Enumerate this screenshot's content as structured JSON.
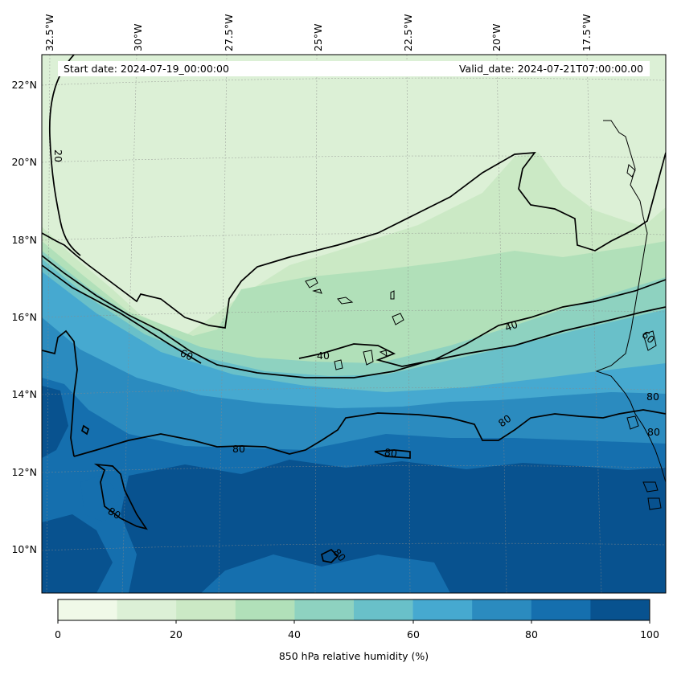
{
  "map": {
    "start_date": "Start date: 2024-07-19_00:00:00",
    "valid_date": "Valid_date: 2024-07-21T07:00:00.00",
    "lon_labels": [
      "32.5°W",
      "30°W",
      "27.5°W",
      "25°W",
      "22.5°W",
      "20°W",
      "17.5°W"
    ],
    "lat_labels": [
      "22°N",
      "20°N",
      "18°N",
      "16°N",
      "14°N",
      "12°N",
      "10°N"
    ],
    "contour_labels": [
      "20",
      "40",
      "40",
      "60",
      "60",
      "80",
      "80",
      "80",
      "80",
      "80",
      "80",
      "80"
    ],
    "field": "850 hPa relative humidity"
  },
  "colorbar": {
    "label": "850 hPa relative humidity (%)",
    "ticks": [
      "0",
      "20",
      "40",
      "60",
      "80",
      "100"
    ],
    "levels": [
      0,
      10,
      20,
      30,
      40,
      50,
      60,
      70,
      80,
      90,
      100
    ],
    "colors": [
      "#f0f9e8",
      "#dcf0d6",
      "#cbe9c5",
      "#b1e0b9",
      "#8ed2c0",
      "#69c0c9",
      "#46a9d0",
      "#2b8bbf",
      "#156fae",
      "#08528f"
    ]
  }
}
